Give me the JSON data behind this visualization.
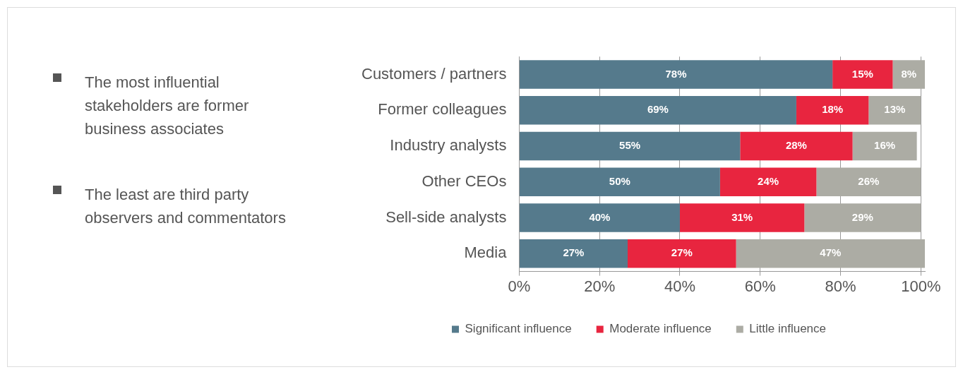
{
  "chart_data": {
    "type": "bar",
    "orientation": "horizontal",
    "stacked": true,
    "categories": [
      "Customers / partners",
      "Former colleagues",
      "Industry analysts",
      "Other CEOs",
      "Sell-side analysts",
      "Media"
    ],
    "series": [
      {
        "name": "Significant influence",
        "color": "#557a8c",
        "values": [
          78,
          69,
          55,
          50,
          40,
          27
        ]
      },
      {
        "name": "Moderate influence",
        "color": "#e8253f",
        "values": [
          15,
          18,
          28,
          24,
          31,
          27
        ]
      },
      {
        "name": "Little influence",
        "color": "#acaca4",
        "values": [
          8,
          13,
          16,
          26,
          29,
          47
        ]
      }
    ],
    "xlim": [
      0,
      101
    ],
    "xticks": [
      {
        "value": 0,
        "label": "0%"
      },
      {
        "value": 20,
        "label": "20%"
      },
      {
        "value": 40,
        "label": "40%"
      },
      {
        "value": 60,
        "label": "60%"
      },
      {
        "value": 80,
        "label": "80%"
      },
      {
        "value": 100,
        "label": "100%"
      }
    ],
    "value_labels": [
      [
        "78%",
        "69%",
        "55%",
        "50%",
        "40%",
        "27%"
      ],
      [
        "15%",
        "18%",
        "28%",
        "24%",
        "31%",
        "27%"
      ],
      [
        "8%",
        "13%",
        "16%",
        "26%",
        "29%",
        "47%"
      ]
    ],
    "grid": "x",
    "legend": "bottom",
    "annotations": [
      "The  most  influential stakeholders are former business associates",
      "The  least  are third party observers and commentators"
    ]
  }
}
